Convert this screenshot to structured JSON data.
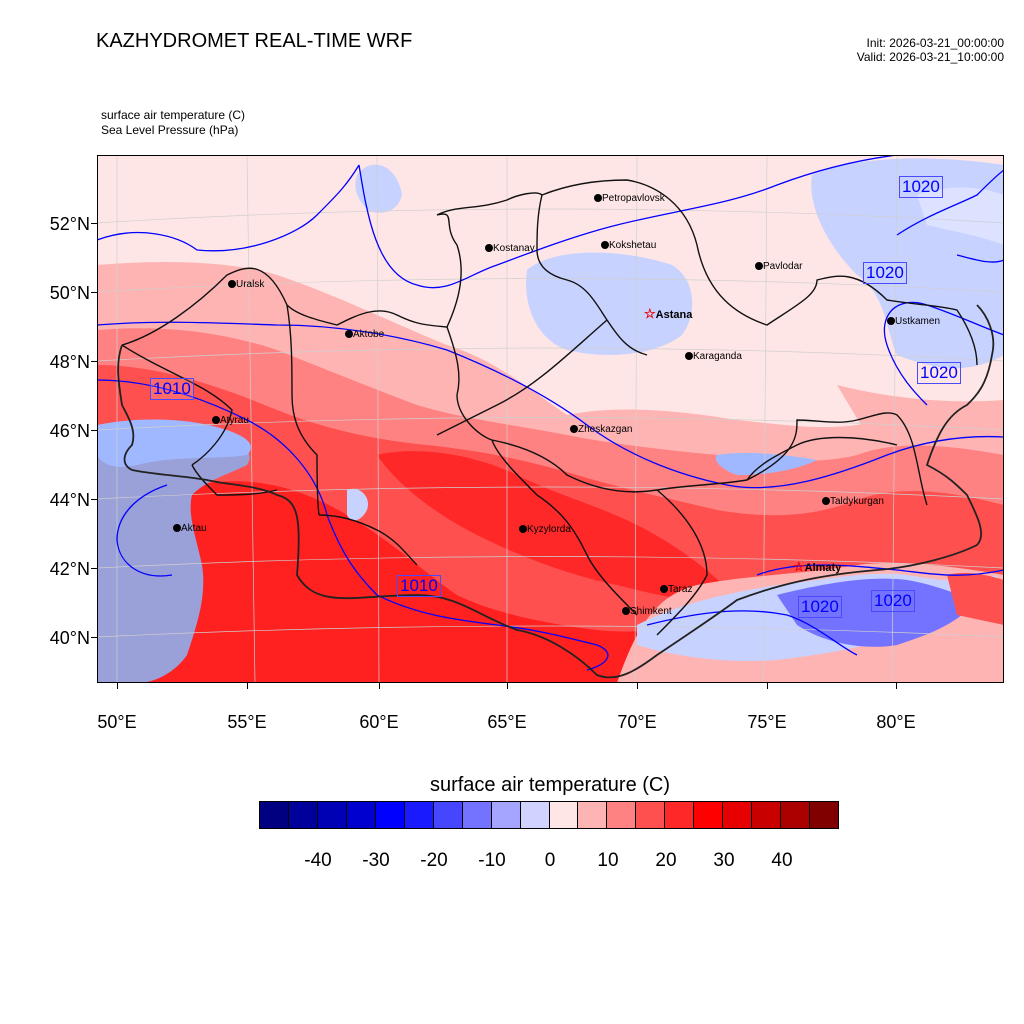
{
  "header": {
    "title": "KAZHYDROMET REAL-TIME WRF",
    "init": "Init: 2026-03-21_00:00:00",
    "valid": "Valid: 2026-03-21_10:00:00"
  },
  "fields": {
    "field1": "surface air temperature   (C)",
    "field2": "Sea Level Pressure   (hPa)"
  },
  "axes": {
    "lat_labels": [
      "52°N",
      "50°N",
      "48°N",
      "46°N",
      "44°N",
      "42°N",
      "40°N"
    ],
    "lon_labels": [
      "50°E",
      "55°E",
      "60°E",
      "65°E",
      "70°E",
      "75°E",
      "80°E"
    ]
  },
  "cities": [
    {
      "name": "Petropavlovsk",
      "capital": false
    },
    {
      "name": "Kostanay",
      "capital": false
    },
    {
      "name": "Kokshetau",
      "capital": false
    },
    {
      "name": "Pavlodar",
      "capital": false
    },
    {
      "name": "Uralsk",
      "capital": false
    },
    {
      "name": "Aktobe",
      "capital": false
    },
    {
      "name": "Astana",
      "capital": true
    },
    {
      "name": "Ustkamen",
      "capital": false
    },
    {
      "name": "Karaganda",
      "capital": false
    },
    {
      "name": "Atyrau",
      "capital": false
    },
    {
      "name": "Zheskazgan",
      "capital": false
    },
    {
      "name": "Taldykurgan",
      "capital": false
    },
    {
      "name": "Aktau",
      "capital": false
    },
    {
      "name": "Kyzylorda",
      "capital": false
    },
    {
      "name": "Almaty",
      "capital": true
    },
    {
      "name": "Taraz",
      "capital": false
    },
    {
      "name": "Shimkent",
      "capital": false
    }
  ],
  "isobar_labels": [
    "1010",
    "1010",
    "1020",
    "1020",
    "1020",
    "1020",
    "1020"
  ],
  "colorbar": {
    "title": "surface air temperature  (C)",
    "tick_labels": [
      "-40",
      "-30",
      "-20",
      "-10",
      "0",
      "10",
      "20",
      "30",
      "40"
    ],
    "colors": [
      "#000080",
      "#00009a",
      "#0000b4",
      "#0000ce",
      "#0000ff",
      "#1a1aff",
      "#4646ff",
      "#7373ff",
      "#a5a5ff",
      "#d2d2ff",
      "#ffe6e6",
      "#ffb4b4",
      "#ff8282",
      "#ff5050",
      "#ff2828",
      "#ff0000",
      "#e60000",
      "#c80000",
      "#aa0000",
      "#800000"
    ]
  },
  "legend_colors": {
    "cold": "#c8d2ff",
    "neutral": "#ffe6e6",
    "warm": "#ff5050",
    "hot": "#ff2020",
    "caspian": "#9aa0d8",
    "isobar": "#0000ff"
  }
}
